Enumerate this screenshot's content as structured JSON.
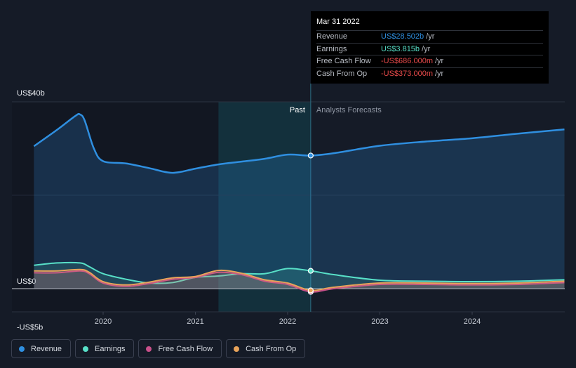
{
  "chart_data": {
    "type": "line",
    "title": "",
    "ylabel": "",
    "ylim": [
      -5,
      40
    ],
    "y_ticks": [
      {
        "value": 40,
        "label": "US$40b"
      },
      {
        "value": 0,
        "label": "US$0"
      },
      {
        "value": -5,
        "label": "-US$5b"
      }
    ],
    "x_ticks": [
      {
        "value": 2020,
        "label": "2020"
      },
      {
        "value": 2021,
        "label": "2021"
      },
      {
        "value": 2022,
        "label": "2022"
      },
      {
        "value": 2023,
        "label": "2023"
      },
      {
        "value": 2024,
        "label": "2024"
      }
    ],
    "xlim": [
      2019.0,
      2025.0
    ],
    "divider_x": 2022.25,
    "past_label": "Past",
    "forecast_label": "Analysts Forecasts",
    "series": [
      {
        "name": "Revenue",
        "color": "#2f8fe0",
        "fill": true,
        "points": [
          [
            2019.25,
            30.5
          ],
          [
            2019.5,
            34
          ],
          [
            2019.7,
            37
          ],
          [
            2019.75,
            37.3
          ],
          [
            2019.8,
            36
          ],
          [
            2019.9,
            30
          ],
          [
            2020.0,
            27.3
          ],
          [
            2020.25,
            26.8
          ],
          [
            2020.5,
            25.8
          ],
          [
            2020.75,
            24.8
          ],
          [
            2021.0,
            25.7
          ],
          [
            2021.25,
            26.6
          ],
          [
            2021.5,
            27.2
          ],
          [
            2021.75,
            27.8
          ],
          [
            2022.0,
            28.7
          ],
          [
            2022.25,
            28.5
          ],
          [
            2022.5,
            29
          ],
          [
            2023.0,
            30.6
          ],
          [
            2023.5,
            31.5
          ],
          [
            2024.0,
            32.2
          ],
          [
            2024.5,
            33.2
          ],
          [
            2025.0,
            34.1
          ]
        ],
        "highlight": [
          2022.25,
          28.502
        ]
      },
      {
        "name": "Earnings",
        "color": "#58e0c8",
        "fill": true,
        "points": [
          [
            2019.25,
            5.0
          ],
          [
            2019.5,
            5.5
          ],
          [
            2019.75,
            5.5
          ],
          [
            2019.85,
            4.7
          ],
          [
            2020.0,
            3.2
          ],
          [
            2020.25,
            2.0
          ],
          [
            2020.5,
            1.2
          ],
          [
            2020.75,
            1.3
          ],
          [
            2021.0,
            2.4
          ],
          [
            2021.25,
            2.7
          ],
          [
            2021.5,
            3.2
          ],
          [
            2021.75,
            3.2
          ],
          [
            2022.0,
            4.3
          ],
          [
            2022.25,
            3.815
          ],
          [
            2022.5,
            3.0
          ],
          [
            2023.0,
            1.8
          ],
          [
            2023.5,
            1.6
          ],
          [
            2024.0,
            1.5
          ],
          [
            2024.5,
            1.6
          ],
          [
            2025.0,
            1.9
          ]
        ],
        "highlight": [
          2022.25,
          3.815
        ]
      },
      {
        "name": "Free Cash Flow",
        "color": "#c8508a",
        "fill": true,
        "points": [
          [
            2019.25,
            3.4
          ],
          [
            2019.5,
            3.4
          ],
          [
            2019.75,
            3.8
          ],
          [
            2019.85,
            3.2
          ],
          [
            2020.0,
            1.2
          ],
          [
            2020.25,
            0.5
          ],
          [
            2020.5,
            1.1
          ],
          [
            2020.75,
            2.0
          ],
          [
            2021.0,
            2.4
          ],
          [
            2021.25,
            3.5
          ],
          [
            2021.5,
            3.0
          ],
          [
            2021.75,
            1.6
          ],
          [
            2022.0,
            0.9
          ],
          [
            2022.25,
            -0.686
          ],
          [
            2022.5,
            0.0
          ],
          [
            2023.0,
            0.9
          ],
          [
            2023.5,
            0.9
          ],
          [
            2024.0,
            0.8
          ],
          [
            2024.5,
            0.9
          ],
          [
            2025.0,
            1.3
          ]
        ],
        "highlight": [
          2022.25,
          -0.686
        ]
      },
      {
        "name": "Cash From Op",
        "color": "#e8a35a",
        "fill": true,
        "points": [
          [
            2019.25,
            3.8
          ],
          [
            2019.5,
            3.8
          ],
          [
            2019.75,
            4.1
          ],
          [
            2019.85,
            3.5
          ],
          [
            2020.0,
            1.5
          ],
          [
            2020.25,
            0.8
          ],
          [
            2020.5,
            1.4
          ],
          [
            2020.75,
            2.3
          ],
          [
            2021.0,
            2.6
          ],
          [
            2021.25,
            3.9
          ],
          [
            2021.5,
            3.3
          ],
          [
            2021.75,
            1.9
          ],
          [
            2022.0,
            1.2
          ],
          [
            2022.25,
            -0.373
          ],
          [
            2022.5,
            0.3
          ],
          [
            2023.0,
            1.2
          ],
          [
            2023.5,
            1.2
          ],
          [
            2024.0,
            1.1
          ],
          [
            2024.5,
            1.2
          ],
          [
            2025.0,
            1.6
          ]
        ],
        "highlight": [
          2022.25,
          -0.373
        ]
      }
    ]
  },
  "tooltip": {
    "date": "Mar 31 2022",
    "rows": [
      {
        "label": "Revenue",
        "value": "US$28.502b",
        "unit": "/yr",
        "color": "#2f8fe0"
      },
      {
        "label": "Earnings",
        "value": "US$3.815b",
        "unit": "/yr",
        "color": "#58e0c8"
      },
      {
        "label": "Free Cash Flow",
        "value": "-US$686.000m",
        "unit": "/yr",
        "color": "#e84a4a"
      },
      {
        "label": "Cash From Op",
        "value": "-US$373.000m",
        "unit": "/yr",
        "color": "#e84a4a"
      }
    ]
  },
  "legend": [
    {
      "label": "Revenue",
      "color": "#2f8fe0"
    },
    {
      "label": "Earnings",
      "color": "#58e0c8"
    },
    {
      "label": "Free Cash Flow",
      "color": "#c8508a"
    },
    {
      "label": "Cash From Op",
      "color": "#e8a35a"
    }
  ]
}
